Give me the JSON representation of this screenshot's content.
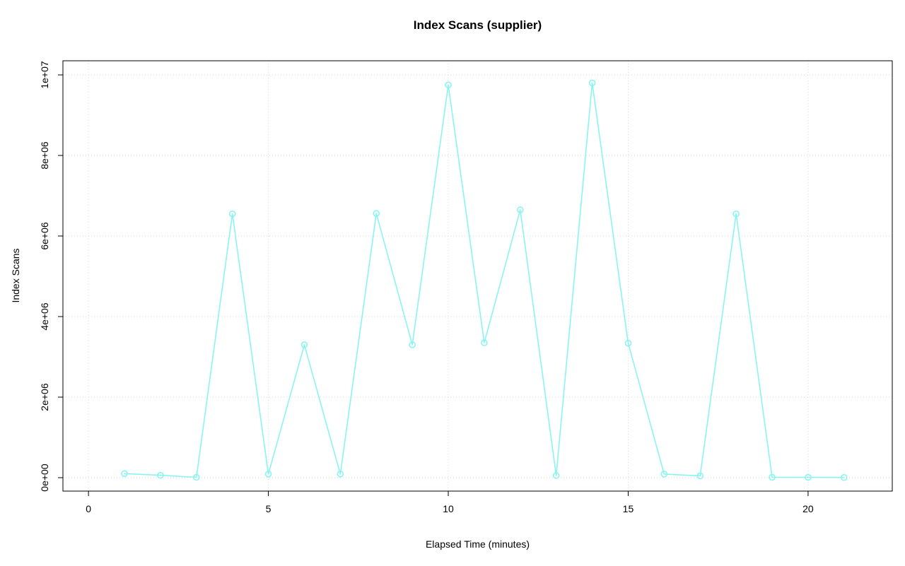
{
  "chart_data": {
    "type": "line",
    "title": "Index Scans (supplier)",
    "xlabel": "Elapsed Time (minutes)",
    "ylabel": "Index Scans",
    "x": [
      1,
      2,
      3,
      4,
      5,
      6,
      7,
      8,
      9,
      10,
      11,
      12,
      13,
      14,
      15,
      16,
      17,
      18,
      19,
      20,
      21
    ],
    "y": [
      100000,
      60000,
      10000,
      6550000,
      90000,
      3300000,
      90000,
      6560000,
      3300000,
      9750000,
      3350000,
      6650000,
      55000,
      9800000,
      3340000,
      90000,
      45000,
      6550000,
      10000,
      8000,
      5000
    ],
    "x_ticks": {
      "values": [
        0,
        5,
        10,
        15,
        20
      ],
      "labels": [
        "0",
        "5",
        "10",
        "15",
        "20"
      ]
    },
    "y_ticks": {
      "values": [
        0,
        2000000,
        4000000,
        6000000,
        8000000,
        10000000
      ],
      "labels": [
        "0e+00",
        "2e+06",
        "4e+06",
        "6e+06",
        "8e+06",
        "1e+07"
      ]
    },
    "xlim": [
      -0.71,
      22.34
    ],
    "ylim": [
      -333000,
      10351000
    ],
    "grid": true,
    "legend": "none",
    "marker": "open-circle",
    "colors": {
      "line": "#8AF5F0",
      "grid": "#D9D9D9",
      "box": "#000000",
      "text": "#000000",
      "background": "#FFFFFF"
    }
  }
}
